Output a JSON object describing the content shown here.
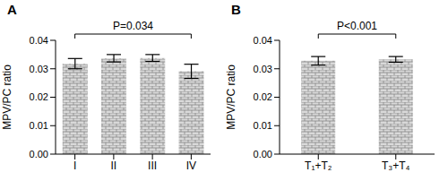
{
  "chart_data": [
    {
      "type": "bar",
      "title": "A",
      "y_label": "MPV/PC ratio",
      "categories": [
        "I",
        "II",
        "III",
        "IV"
      ],
      "values": [
        0.0318,
        0.0337,
        0.0338,
        0.0291
      ],
      "errors": [
        0.0018,
        0.0013,
        0.0012,
        0.0025
      ],
      "color": "#d9d9d9",
      "ylim": [
        0,
        0.04
      ],
      "yticks": [
        {
          "value": 0,
          "label": "0.00"
        },
        {
          "value": 0.01,
          "label": "0.01"
        },
        {
          "value": 0.02,
          "label": "0.02"
        },
        {
          "value": 0.03,
          "label": "0.03"
        },
        {
          "value": 0.04,
          "label": "0.04"
        }
      ],
      "annotation": "P=0.034"
    },
    {
      "type": "bar",
      "title": "B",
      "y_label": "MPV/PC ratio",
      "categories": [
        "T₁+T₂",
        "T₃+T₄"
      ],
      "values": [
        0.0328,
        0.0333
      ],
      "errors": [
        0.0015,
        0.001
      ],
      "color": "#d9d9d9",
      "ylim": [
        0,
        0.04
      ],
      "yticks": [
        {
          "value": 0,
          "label": "0.00"
        },
        {
          "value": 0.01,
          "label": "0.01"
        },
        {
          "value": 0.02,
          "label": "0.02"
        },
        {
          "value": 0.03,
          "label": "0.03"
        },
        {
          "value": 0.04,
          "label": "0.04"
        }
      ],
      "annotation": "P<0.001"
    }
  ]
}
